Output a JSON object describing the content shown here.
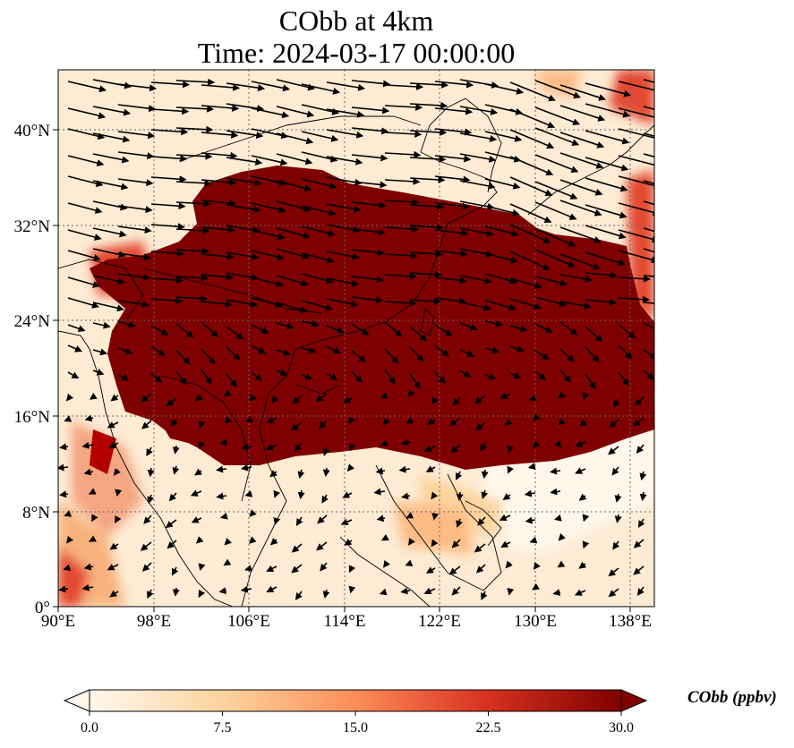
{
  "title": {
    "line1": "CObb at 4km",
    "line2": "Time: 2024-03-17 00:00:00"
  },
  "map": {
    "x_ticks": [
      "90°E",
      "98°E",
      "106°E",
      "114°E",
      "122°E",
      "130°E",
      "138°E"
    ],
    "y_ticks": [
      "40°N",
      "32°N",
      "24°N",
      "16°N",
      "8°N",
      "0°"
    ],
    "gridlines": true,
    "gridline_style": "dotted",
    "field": "CObb",
    "level": "4km",
    "vectors": "wind",
    "colormap": "OrRd"
  },
  "colorbar": {
    "label": "CObb (ppbv)",
    "ticks": [
      "0.0",
      "7.5",
      "15.0",
      "22.5",
      "30.0"
    ],
    "range": [
      0.0,
      30.0
    ],
    "extend": "both",
    "colors": [
      "#fff7ec",
      "#fdd49e",
      "#fc8d59",
      "#d7301f",
      "#7f0000"
    ]
  }
}
